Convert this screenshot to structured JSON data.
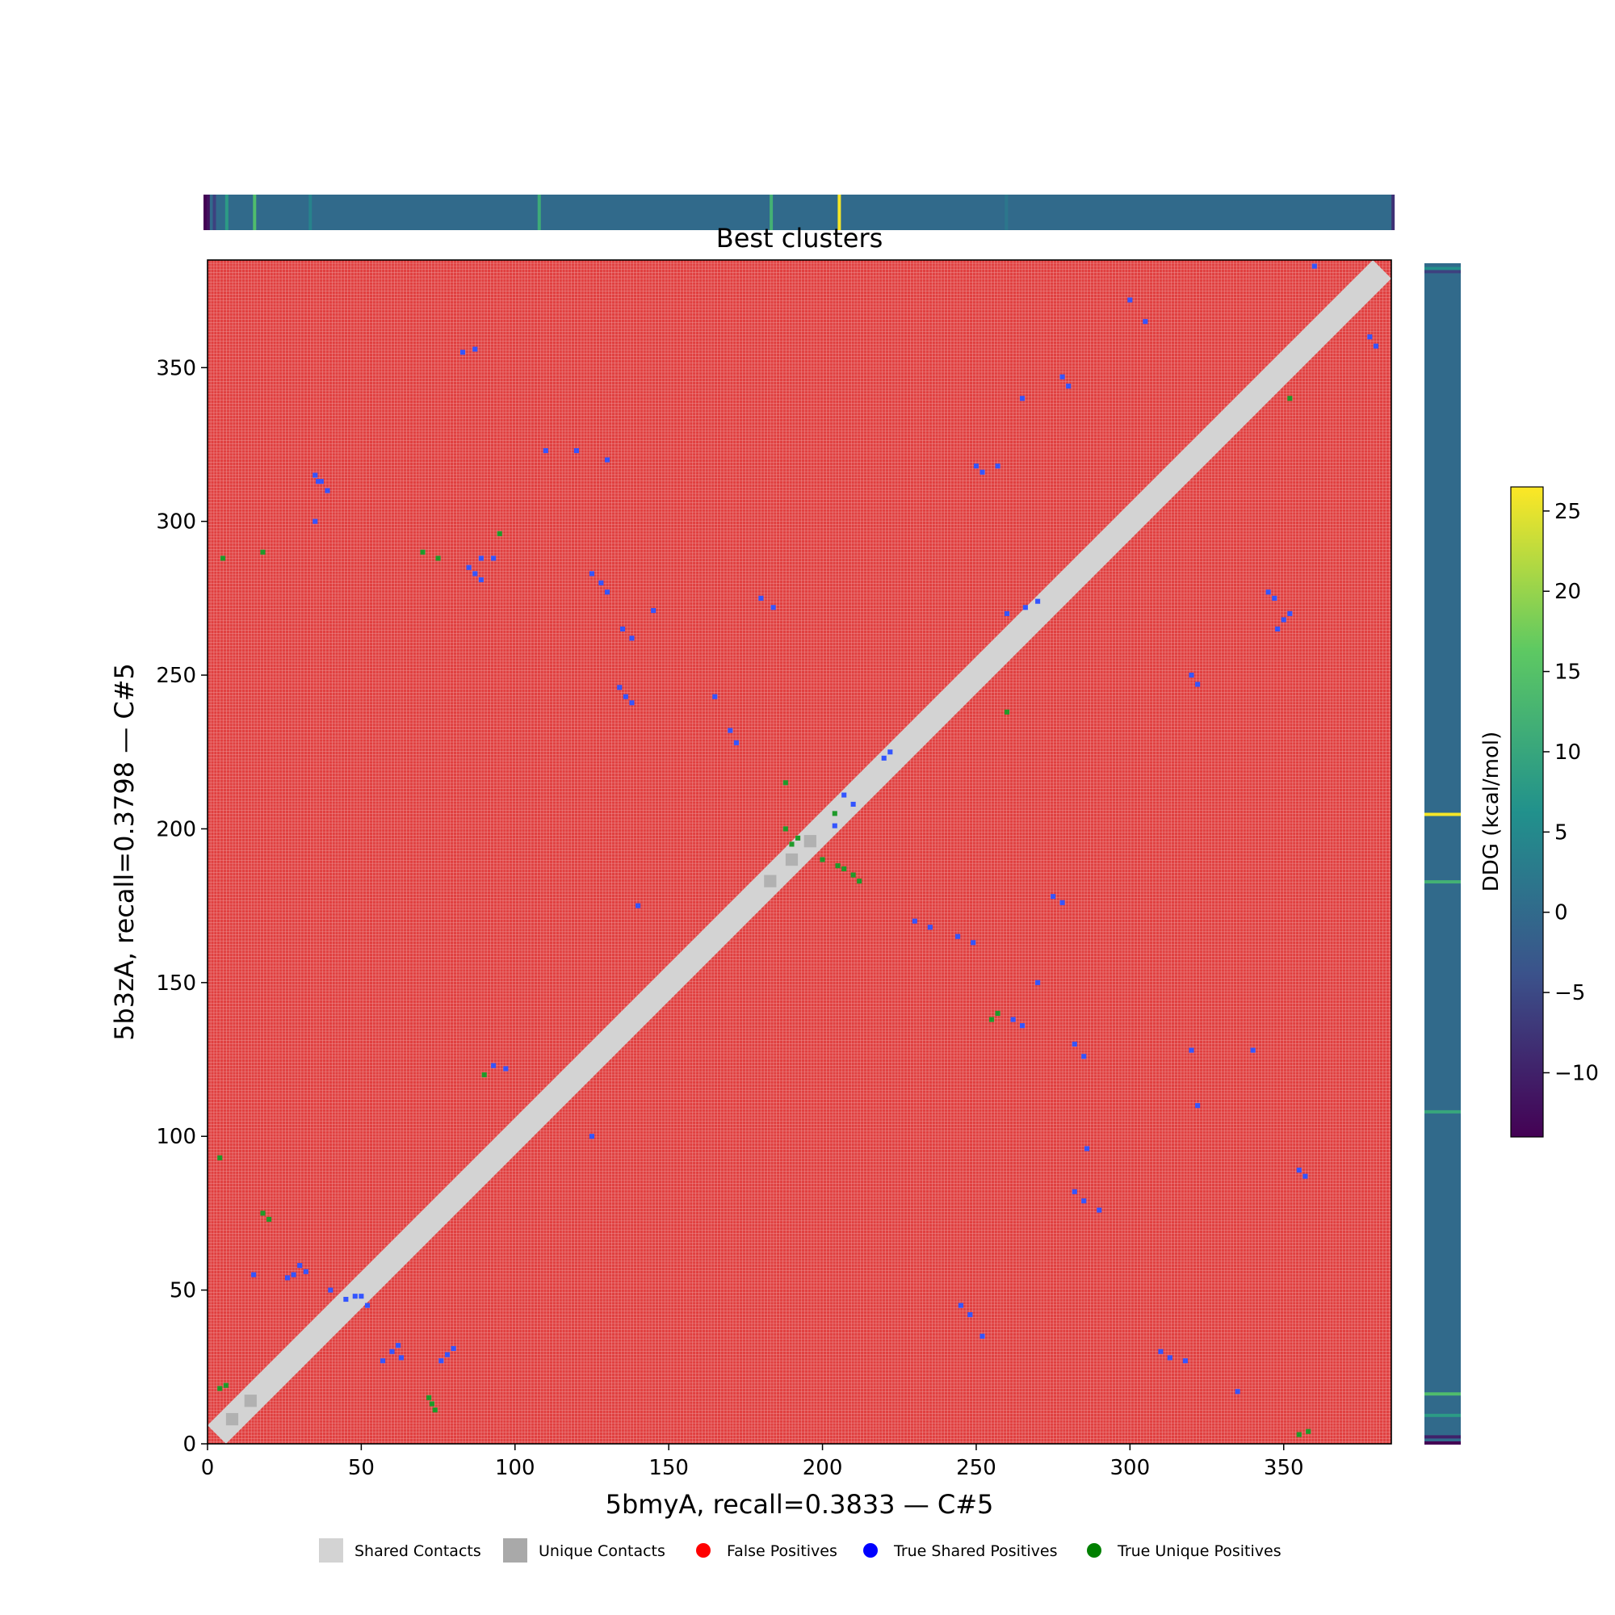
{
  "chart_data": {
    "type": "heatmap",
    "title": "Best clusters",
    "xlabel": "5bmyA, recall=0.3833 — C#5",
    "ylabel": "5b3zA, recall=0.3798 — C#5",
    "xlim": [
      0,
      385
    ],
    "ylim": [
      0,
      385
    ],
    "x_ticks": [
      "0",
      "50",
      "100",
      "150",
      "200",
      "250",
      "300",
      "350"
    ],
    "y_ticks": [
      "0",
      "50",
      "100",
      "150",
      "200",
      "250",
      "300",
      "350"
    ],
    "grid": true,
    "background_class": "False Positives",
    "diagonal_band_halfwidth": 6,
    "legend": {
      "placement": "bottom-center",
      "entries": [
        {
          "label": "Shared Contacts",
          "marker": "square",
          "color": "#d3d3d3"
        },
        {
          "label": "Unique Contacts",
          "marker": "square",
          "color": "#a9a9a9"
        },
        {
          "label": "False Positives",
          "marker": "circle",
          "color": "#ff0000"
        },
        {
          "label": "True Shared Positives",
          "marker": "circle",
          "color": "#0000ff"
        },
        {
          "label": "True Unique Positives",
          "marker": "circle",
          "color": "#008000"
        }
      ]
    },
    "true_shared_positives": [
      [
        30,
        58
      ],
      [
        32,
        56
      ],
      [
        28,
        55
      ],
      [
        26,
        54
      ],
      [
        35,
        315
      ],
      [
        37,
        313
      ],
      [
        39,
        310
      ],
      [
        85,
        285
      ],
      [
        87,
        283
      ],
      [
        89,
        281
      ],
      [
        125,
        283
      ],
      [
        128,
        280
      ],
      [
        130,
        277
      ],
      [
        135,
        265
      ],
      [
        138,
        262
      ],
      [
        165,
        243
      ],
      [
        170,
        232
      ],
      [
        172,
        228
      ],
      [
        180,
        275
      ],
      [
        184,
        272
      ],
      [
        270,
        150
      ],
      [
        282,
        130
      ],
      [
        285,
        126
      ],
      [
        286,
        96
      ],
      [
        282,
        82
      ],
      [
        285,
        79
      ],
      [
        290,
        76
      ],
      [
        310,
        30
      ],
      [
        313,
        28
      ],
      [
        318,
        27
      ],
      [
        335,
        17
      ],
      [
        355,
        89
      ],
      [
        357,
        87
      ],
      [
        345,
        277
      ],
      [
        347,
        275
      ],
      [
        230,
        170
      ],
      [
        235,
        168
      ],
      [
        244,
        165
      ],
      [
        249,
        163
      ],
      [
        275,
        178
      ],
      [
        278,
        176
      ],
      [
        280,
        344
      ],
      [
        278,
        347
      ],
      [
        265,
        340
      ],
      [
        250,
        318
      ],
      [
        252,
        316
      ],
      [
        320,
        128
      ],
      [
        322,
        110
      ],
      [
        360,
        383
      ],
      [
        378,
        360
      ],
      [
        380,
        357
      ],
      [
        120,
        323
      ],
      [
        110,
        323
      ],
      [
        130,
        320
      ],
      [
        93,
        288
      ],
      [
        145,
        271
      ],
      [
        87,
        356
      ],
      [
        83,
        355
      ],
      [
        35,
        300
      ],
      [
        60,
        30
      ],
      [
        62,
        32
      ],
      [
        63,
        28
      ],
      [
        57,
        27
      ],
      [
        76,
        27
      ],
      [
        78,
        29
      ],
      [
        80,
        31
      ],
      [
        89,
        288
      ],
      [
        97,
        122
      ],
      [
        93,
        123
      ],
      [
        125,
        100
      ],
      [
        134,
        246
      ],
      [
        136,
        243
      ],
      [
        138,
        241
      ],
      [
        207,
        211
      ],
      [
        210,
        208
      ],
      [
        204,
        201
      ],
      [
        245,
        45
      ],
      [
        248,
        42
      ],
      [
        252,
        35
      ],
      [
        257,
        318
      ],
      [
        222,
        225
      ],
      [
        220,
        223
      ],
      [
        320,
        250
      ],
      [
        322,
        247
      ],
      [
        265,
        136
      ],
      [
        262,
        138
      ],
      [
        300,
        372
      ],
      [
        305,
        365
      ],
      [
        140,
        175
      ],
      [
        260,
        270
      ],
      [
        266,
        272
      ],
      [
        270,
        274
      ],
      [
        15,
        55
      ],
      [
        45,
        47
      ],
      [
        48,
        48
      ],
      [
        40,
        50
      ],
      [
        50,
        48
      ],
      [
        52,
        45
      ],
      [
        36,
        313
      ],
      [
        340,
        128
      ],
      [
        348,
        265
      ],
      [
        350,
        268
      ],
      [
        352,
        270
      ]
    ],
    "true_unique_positives": [
      [
        72,
        15
      ],
      [
        73,
        13
      ],
      [
        74,
        11
      ],
      [
        5,
        288
      ],
      [
        18,
        290
      ],
      [
        4,
        18
      ],
      [
        6,
        19
      ],
      [
        4,
        93
      ],
      [
        355,
        3
      ],
      [
        358,
        4
      ],
      [
        255,
        138
      ],
      [
        257,
        140
      ],
      [
        260,
        238
      ],
      [
        200,
        190
      ],
      [
        205,
        188
      ],
      [
        207,
        187
      ],
      [
        210,
        185
      ],
      [
        212,
        183
      ],
      [
        190,
        195
      ],
      [
        192,
        197
      ],
      [
        188,
        200
      ],
      [
        204,
        205
      ],
      [
        18,
        75
      ],
      [
        20,
        73
      ],
      [
        70,
        290
      ],
      [
        95,
        296
      ],
      [
        75,
        288
      ],
      [
        90,
        120
      ],
      [
        188,
        215
      ],
      [
        352,
        340
      ]
    ],
    "ddg_colorbar": {
      "label": "DDG (kcal/mol)",
      "ticks": [
        "−10",
        "−5",
        "0",
        "5",
        "10",
        "15",
        "20",
        "25"
      ],
      "range": [
        -14,
        26.5
      ],
      "colormap": [
        "#440154",
        "#3b528b",
        "#21918c",
        "#5ec962",
        "#fde725"
      ],
      "top_track_baseline": 0,
      "top_track_spikes": [
        {
          "index": 0,
          "value": -14
        },
        {
          "index": 1,
          "value": -12
        },
        {
          "index": 3,
          "value": -6
        },
        {
          "index": 7,
          "value": 8
        },
        {
          "index": 16,
          "value": 14
        },
        {
          "index": 34,
          "value": 4
        },
        {
          "index": 108,
          "value": 11
        },
        {
          "index": 183,
          "value": 12
        },
        {
          "index": 205,
          "value": 26
        },
        {
          "index": 259,
          "value": 2
        },
        {
          "index": 384,
          "value": -8
        }
      ],
      "side_track_spikes": [
        {
          "index": 0,
          "value": -14
        },
        {
          "index": 2,
          "value": -10
        },
        {
          "index": 9,
          "value": 8
        },
        {
          "index": 16,
          "value": 14
        },
        {
          "index": 108,
          "value": 10
        },
        {
          "index": 183,
          "value": 12
        },
        {
          "index": 205,
          "value": 26
        },
        {
          "index": 383,
          "value": 6
        },
        {
          "index": 382,
          "value": -6
        }
      ]
    }
  }
}
